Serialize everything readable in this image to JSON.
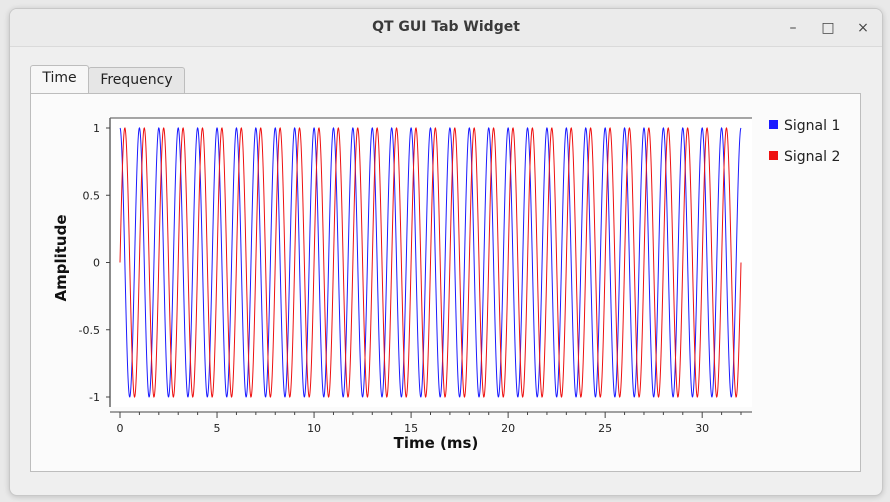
{
  "window": {
    "title": "QT GUI Tab Widget",
    "minimize_glyph": "–",
    "maximize_glyph": "□",
    "close_glyph": "×"
  },
  "tabs": [
    {
      "label": "Time",
      "active": true
    },
    {
      "label": "Frequency",
      "active": false
    }
  ],
  "chart_data": {
    "type": "line",
    "xlabel": "Time (ms)",
    "ylabel": "Amplitude",
    "xlim": [
      0,
      32
    ],
    "ylim": [
      -1,
      1
    ],
    "x_ticks": [
      0,
      5,
      10,
      15,
      20,
      25,
      30
    ],
    "x_tick_labels": [
      "0",
      "5",
      "10",
      "15",
      "20",
      "25",
      "30"
    ],
    "y_ticks": [
      1,
      0.5,
      0,
      -0.5,
      -1
    ],
    "y_tick_labels": [
      "1",
      "0.5",
      "0",
      "-0.5",
      "-1"
    ],
    "grid": false,
    "legend_position": "right",
    "series": [
      {
        "name": "Signal 1",
        "color": "#1a1aff",
        "waveform": "cosine",
        "frequency_khz": 1.0,
        "amplitude": 1,
        "phase_deg": 0
      },
      {
        "name": "Signal 2",
        "color": "#ee1111",
        "waveform": "sine",
        "frequency_khz": 1.0,
        "amplitude": 1,
        "phase_deg": 0
      }
    ]
  }
}
